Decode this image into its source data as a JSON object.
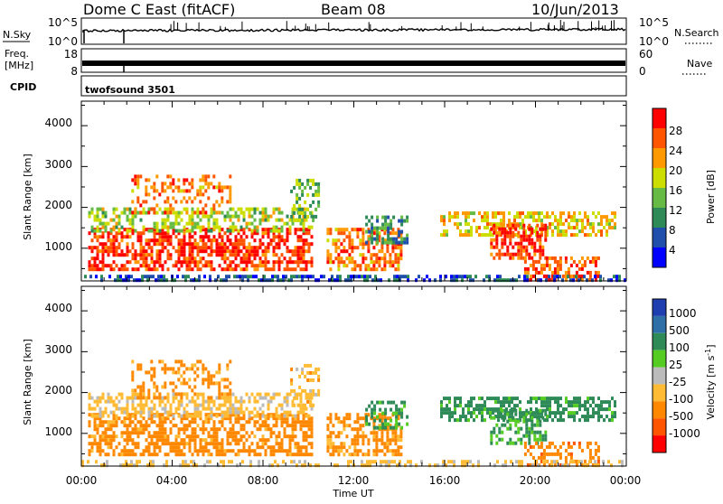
{
  "header": {
    "title": "Dome C East (fitACF)",
    "beam": "Beam 08",
    "date": "10/Jun/2013"
  },
  "strips": {
    "nsky_label": "N.Sky",
    "nsky_ticks": [
      "10^5",
      "10^0"
    ],
    "nsearch_label": "N.Search",
    "freq_label_1": "Freq.",
    "freq_label_2": "[MHz]",
    "freq_ticks": [
      "18",
      "8"
    ],
    "nave_label": "Nave",
    "nave_ticks": [
      "60",
      "0"
    ],
    "cpid_label": "CPID",
    "cpid_value": "twofsound 3501"
  },
  "colors": {
    "power": [
      "#0000ff",
      "#1f4faa",
      "#2e8b57",
      "#66bb44",
      "#ccdd00",
      "#ff9900",
      "#ff5500",
      "#ff0000"
    ],
    "velocity": [
      "#1f3fb0",
      "#2e6fa8",
      "#2e8b57",
      "#55cc22",
      "#bbbbbb",
      "#ffbb33",
      "#ff8800",
      "#ff5500",
      "#ff0000"
    ]
  },
  "chart_data": [
    {
      "type": "heatmap",
      "name": "power",
      "ylabel": "Slant Range [km]",
      "yticks": [
        "1000",
        "2000",
        "3000",
        "4000"
      ],
      "ylim": [
        200,
        4600
      ],
      "xlim": [
        0,
        24
      ],
      "colorbar_label": "Power [dB]",
      "colorbar_ticks": [
        "4",
        "8",
        "12",
        "16",
        "20",
        "24",
        "28"
      ],
      "colorbar_range": [
        0,
        32
      ],
      "regions": [
        {
          "t0": 0.3,
          "t1": 10.2,
          "r0": 450,
          "r1": 1500,
          "v": 28,
          "d": 0.62
        },
        {
          "t0": 0.3,
          "t1": 10.2,
          "r0": 1450,
          "r1": 2000,
          "v": 16,
          "d": 0.5
        },
        {
          "t0": 2.2,
          "t1": 6.6,
          "r0": 1900,
          "r1": 2800,
          "v": 24,
          "d": 0.35
        },
        {
          "t0": 9.2,
          "t1": 10.5,
          "r0": 1700,
          "r1": 2700,
          "v": 14,
          "d": 0.35
        },
        {
          "t0": 10.8,
          "t1": 14.1,
          "r0": 450,
          "r1": 1500,
          "v": 24,
          "d": 0.55
        },
        {
          "t0": 12.5,
          "t1": 14.3,
          "r0": 1100,
          "r1": 1800,
          "v": 10,
          "d": 0.45
        },
        {
          "t0": 15.8,
          "t1": 23.5,
          "r0": 1300,
          "r1": 1900,
          "v": 20,
          "d": 0.55
        },
        {
          "t0": 18.0,
          "t1": 20.5,
          "r0": 800,
          "r1": 1600,
          "v": 28,
          "d": 0.6
        },
        {
          "t0": 19.5,
          "t1": 22.8,
          "r0": 250,
          "r1": 800,
          "v": 26,
          "d": 0.5
        },
        {
          "t0": 0.0,
          "t1": 23.9,
          "r0": 200,
          "r1": 350,
          "v": 6,
          "d": 0.5
        }
      ]
    },
    {
      "type": "heatmap",
      "name": "velocity",
      "ylabel": "Slant Range [km]",
      "xlabel": "Time UT",
      "yticks": [
        "1000",
        "2000",
        "3000",
        "4000"
      ],
      "ylim": [
        200,
        4600
      ],
      "xlim": [
        0,
        24
      ],
      "xticks": [
        "00:00",
        "04:00",
        "08:00",
        "12:00",
        "16:00",
        "20:00",
        "00:00"
      ],
      "colorbar_label": "Velocity [m s",
      "colorbar_label_sup": "-1",
      "colorbar_label_end": "]",
      "colorbar_ticks": [
        "1000",
        "500",
        "100",
        "25",
        "-25",
        "-100",
        "-500",
        "-1000"
      ],
      "regions": [
        {
          "t0": 0.3,
          "t1": 10.2,
          "r0": 450,
          "r1": 1500,
          "v": -200,
          "d": 0.62
        },
        {
          "t0": 0.3,
          "t1": 10.2,
          "r0": 1450,
          "r1": 2000,
          "v": -40,
          "d": 0.5
        },
        {
          "t0": 2.2,
          "t1": 6.6,
          "r0": 1900,
          "r1": 2800,
          "v": -150,
          "d": 0.35
        },
        {
          "t0": 9.2,
          "t1": 10.5,
          "r0": 1700,
          "r1": 2700,
          "v": -60,
          "d": 0.35
        },
        {
          "t0": 10.8,
          "t1": 14.1,
          "r0": 450,
          "r1": 1500,
          "v": -150,
          "d": 0.55
        },
        {
          "t0": 12.5,
          "t1": 14.3,
          "r0": 1100,
          "r1": 1800,
          "v": 100,
          "d": 0.4
        },
        {
          "t0": 15.8,
          "t1": 23.5,
          "r0": 1300,
          "r1": 1900,
          "v": 150,
          "d": 0.55
        },
        {
          "t0": 18.0,
          "t1": 20.5,
          "r0": 800,
          "r1": 1600,
          "v": 120,
          "d": 0.5
        },
        {
          "t0": 19.5,
          "t1": 22.8,
          "r0": 250,
          "r1": 800,
          "v": -300,
          "d": 0.45
        },
        {
          "t0": 0.0,
          "t1": 23.9,
          "r0": 200,
          "r1": 350,
          "v": -30,
          "d": 0.4
        }
      ]
    }
  ]
}
